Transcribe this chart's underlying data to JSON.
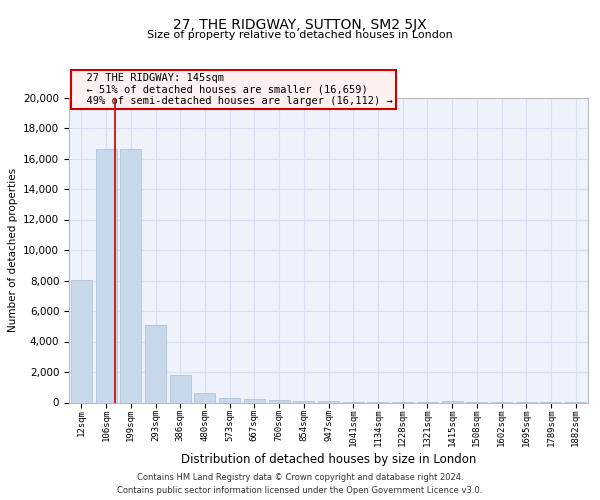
{
  "title": "27, THE RIDGWAY, SUTTON, SM2 5JX",
  "subtitle": "Size of property relative to detached houses in London",
  "xlabel": "Distribution of detached houses by size in London",
  "ylabel": "Number of detached properties",
  "annotation_title": "27 THE RIDGWAY: 145sqm",
  "annotation_line1": "← 51% of detached houses are smaller (16,659)",
  "annotation_line2": "49% of semi-detached houses are larger (16,112) →",
  "footer_line1": "Contains HM Land Registry data © Crown copyright and database right 2024.",
  "footer_line2": "Contains public sector information licensed under the Open Government Licence v3.0.",
  "bar_color": "#c8d8eb",
  "bar_edge_color": "#aabdd4",
  "vline_color": "#cc0000",
  "annotation_box_facecolor": "#fff0f0",
  "annotation_box_edgecolor": "#cc0000",
  "bg_color": "#eef2fa",
  "grid_color": "#d8dff0",
  "categories": [
    "12sqm",
    "106sqm",
    "199sqm",
    "293sqm",
    "386sqm",
    "480sqm",
    "573sqm",
    "667sqm",
    "760sqm",
    "854sqm",
    "947sqm",
    "1041sqm",
    "1134sqm",
    "1228sqm",
    "1321sqm",
    "1415sqm",
    "1508sqm",
    "1602sqm",
    "1695sqm",
    "1789sqm",
    "1882sqm"
  ],
  "values": [
    8050,
    16600,
    16600,
    5100,
    1820,
    650,
    310,
    200,
    140,
    95,
    70,
    55,
    45,
    35,
    25,
    75,
    18,
    10,
    8,
    5,
    4
  ],
  "vline_x": 1.38,
  "ylim": [
    0,
    20000
  ],
  "yticks": [
    0,
    2000,
    4000,
    6000,
    8000,
    10000,
    12000,
    14000,
    16000,
    18000,
    20000
  ]
}
